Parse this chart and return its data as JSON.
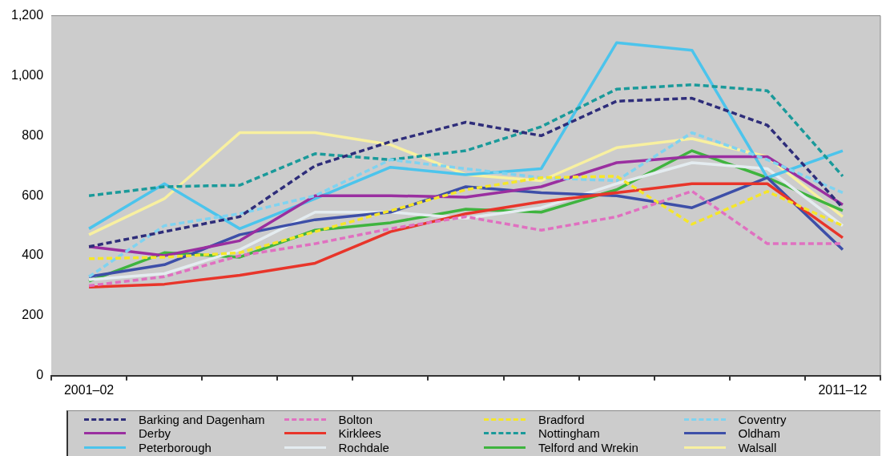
{
  "chart_data": {
    "type": "line",
    "categories": [
      "2001–02",
      null,
      null,
      null,
      null,
      null,
      null,
      null,
      null,
      null,
      "2011–12"
    ],
    "ylim": [
      0,
      1200
    ],
    "yticks": [
      {
        "value": 0,
        "label": "0"
      },
      {
        "value": 200,
        "label": "200"
      },
      {
        "value": 400,
        "label": "400"
      },
      {
        "value": 600,
        "label": "600"
      },
      {
        "value": 800,
        "label": "800"
      },
      {
        "value": 1000,
        "label": "1,000"
      },
      {
        "value": 1200,
        "label": "1,200"
      }
    ],
    "grid": false,
    "legend": "bottom",
    "marker": "none",
    "series": [
      {
        "name": "Barking and Dagenham",
        "color": "#2e2d7a",
        "line_style": "dashed",
        "values": [
          430,
          480,
          530,
          700,
          780,
          845,
          800,
          915,
          925,
          835,
          560
        ]
      },
      {
        "name": "Bolton",
        "color": "#e070c0",
        "line_style": "dashed",
        "values": [
          300,
          330,
          400,
          440,
          490,
          530,
          485,
          530,
          615,
          440,
          440
        ]
      },
      {
        "name": "Bradford",
        "color": "#f5e62a",
        "line_style": "dashed",
        "values": [
          390,
          395,
          410,
          480,
          550,
          620,
          660,
          665,
          505,
          614,
          500
        ]
      },
      {
        "name": "Coventry",
        "color": "#7fd3f0",
        "line_style": "dashed",
        "values": [
          330,
          500,
          540,
          600,
          720,
          690,
          660,
          650,
          810,
          720,
          610
        ]
      },
      {
        "name": "Derby",
        "color": "#9a2fa0",
        "line_style": "solid",
        "values": [
          430,
          400,
          450,
          600,
          600,
          595,
          630,
          710,
          730,
          730,
          570
        ]
      },
      {
        "name": "Kirklees",
        "color": "#e8352a",
        "line_style": "solid",
        "values": [
          295,
          305,
          335,
          375,
          480,
          540,
          580,
          610,
          640,
          640,
          460
        ]
      },
      {
        "name": "Nottingham",
        "color": "#1a9a9a",
        "line_style": "dashed",
        "values": [
          600,
          630,
          635,
          740,
          720,
          750,
          830,
          955,
          970,
          950,
          665
        ]
      },
      {
        "name": "Oldham",
        "color": "#3d4fa8",
        "line_style": "solid",
        "values": [
          330,
          370,
          470,
          520,
          545,
          630,
          610,
          600,
          560,
          660,
          420
        ]
      },
      {
        "name": "Peterborough",
        "color": "#4cc4ec",
        "line_style": "solid",
        "values": [
          490,
          640,
          490,
          590,
          695,
          670,
          690,
          1110,
          1085,
          660,
          750
        ]
      },
      {
        "name": "Rochdale",
        "color": "#e4ecf0",
        "line_style": "solid",
        "values": [
          320,
          340,
          420,
          545,
          545,
          525,
          560,
          640,
          710,
          690,
          500
        ]
      },
      {
        "name": "Telford and Wrekin",
        "color": "#3fb43f",
        "line_style": "solid",
        "values": [
          315,
          410,
          395,
          485,
          510,
          555,
          545,
          620,
          750,
          660,
          550
        ]
      },
      {
        "name": "Walsall",
        "color": "#f8f0a0",
        "line_style": "solid",
        "values": [
          470,
          590,
          810,
          810,
          770,
          670,
          650,
          760,
          790,
          730,
          530
        ]
      }
    ]
  }
}
